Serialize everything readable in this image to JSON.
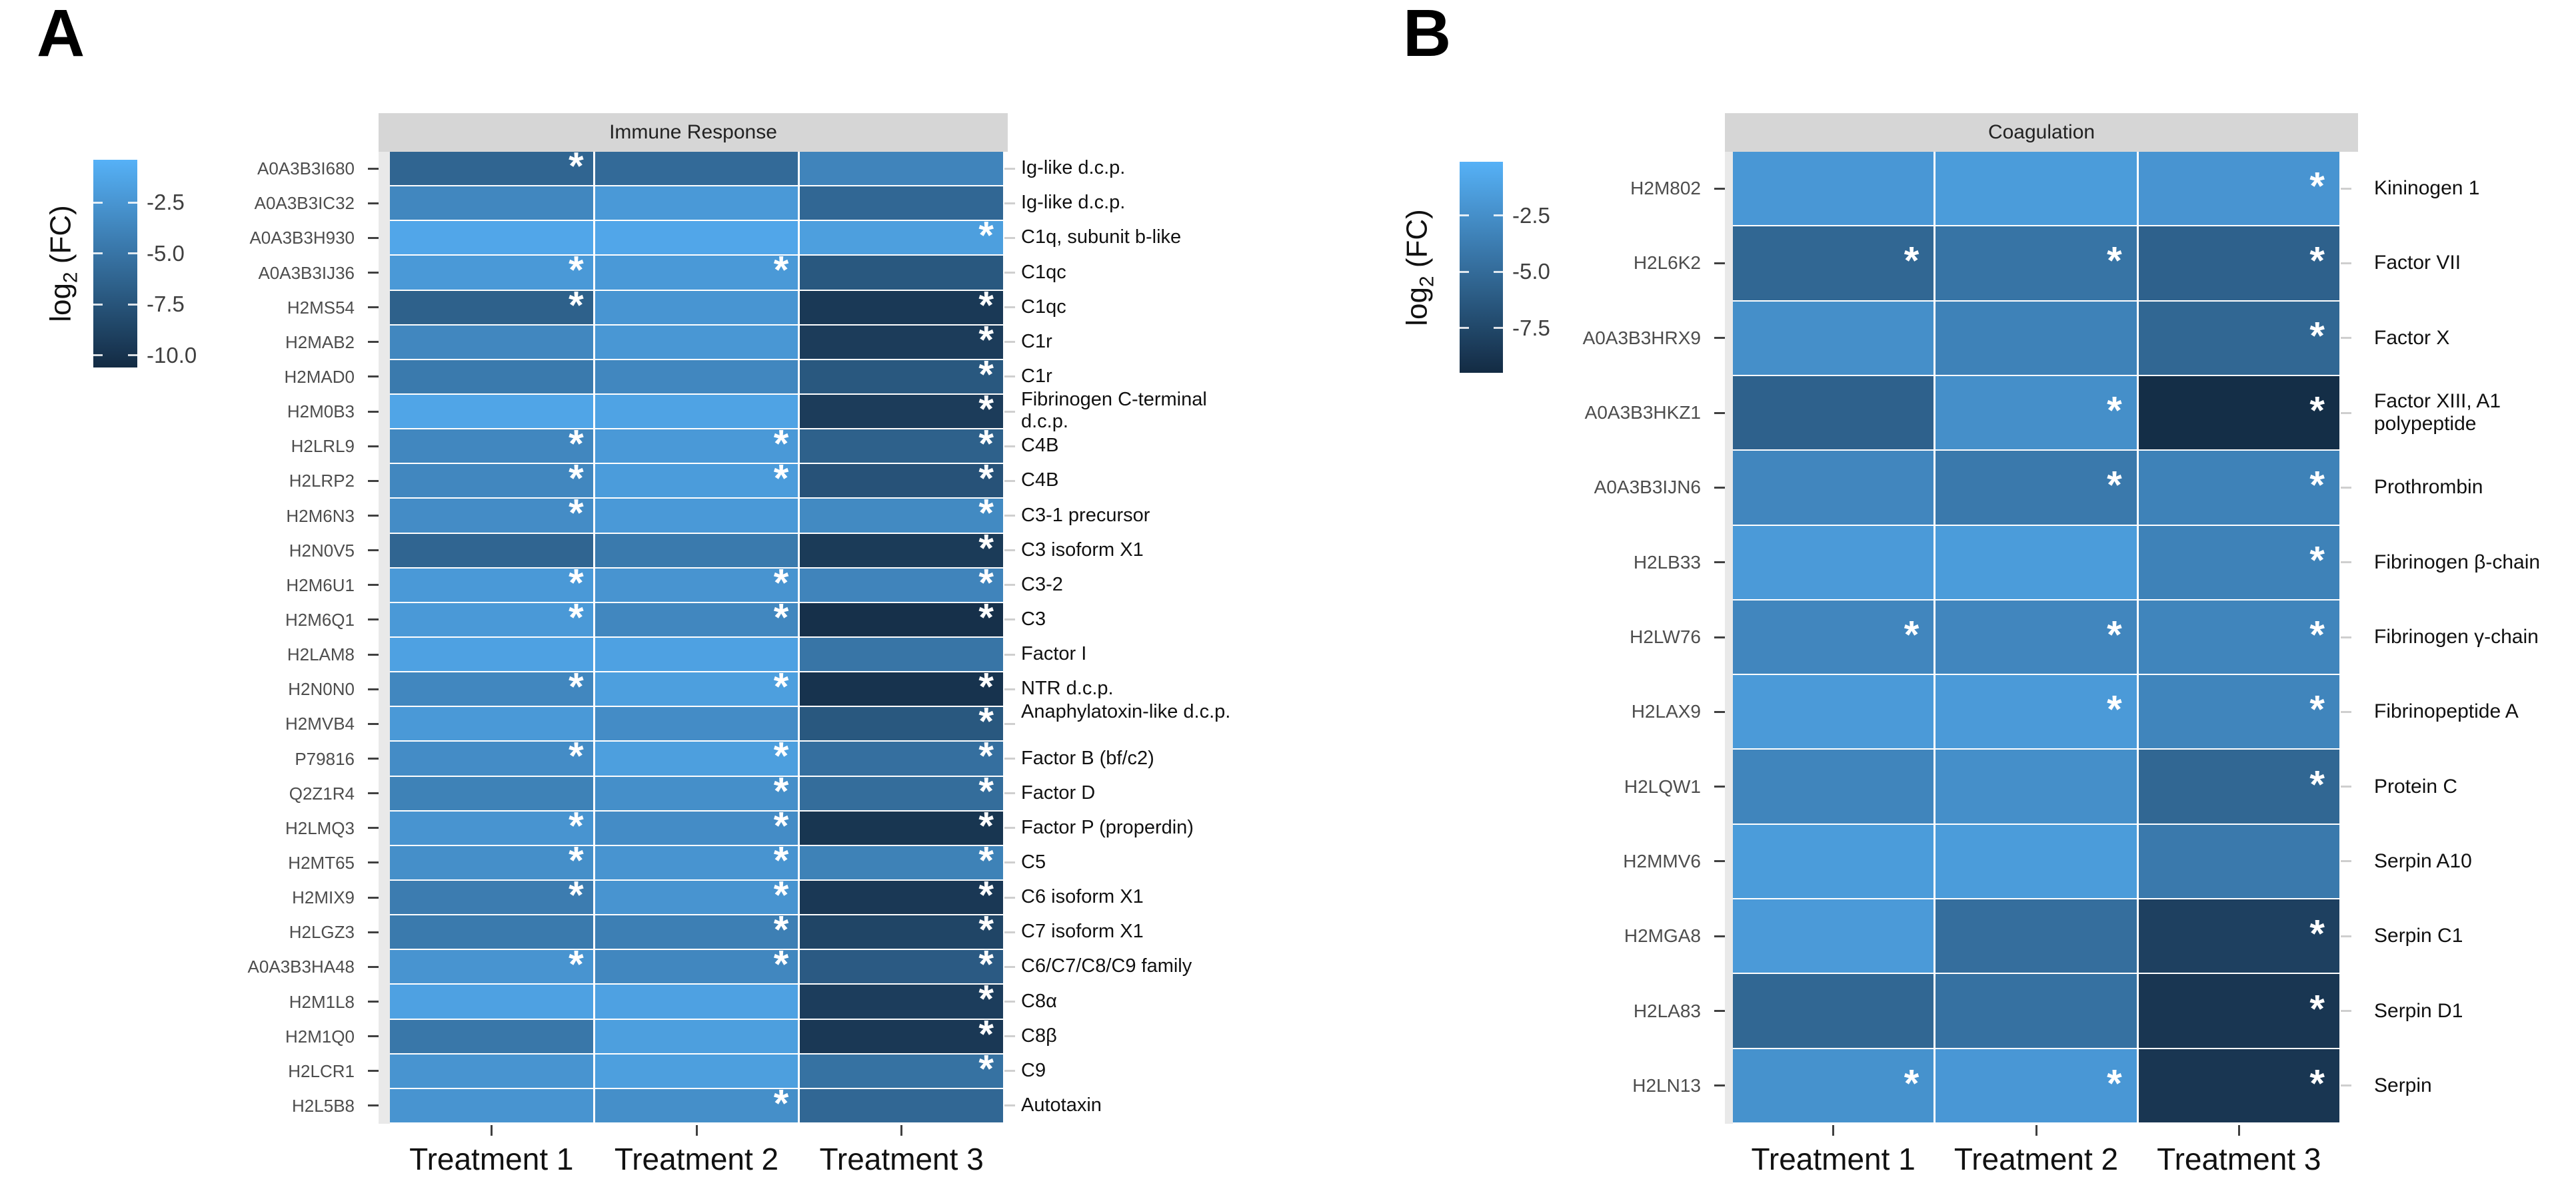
{
  "figure_background": "#ffffff",
  "chart_data": [
    {
      "type": "heatmap",
      "panel_label": "A",
      "facet_title": "Immune Response",
      "legend_title_parts": [
        "log",
        "2",
        " (FC)"
      ],
      "legend_ticks": [
        "-2.5",
        "-5.0",
        "-7.5",
        "-10.0"
      ],
      "color_high": "#56B1F7",
      "color_low": "#132B43",
      "value_domain_abs": [
        0.4,
        10.6
      ],
      "grid_on": false,
      "legend_position": "left",
      "columns": [
        "Treatment 1",
        "Treatment 2",
        "Treatment 3"
      ],
      "rows": [
        {
          "id": "A0A3B3I680",
          "protein": "Ig-like d.c.p.",
          "values": [
            -6.2,
            -5.8,
            -3.8
          ],
          "sig": [
            true,
            false,
            false
          ]
        },
        {
          "id": "A0A3B3IC32",
          "protein": "Ig-like d.c.p.",
          "values": [
            -3.6,
            -2.2,
            -6.0
          ],
          "sig": [
            false,
            false,
            false
          ]
        },
        {
          "id": "A0A3B3H930",
          "protein": "C1q, subunit b-like",
          "values": [
            -1.2,
            -1.2,
            -1.8
          ],
          "sig": [
            false,
            false,
            true
          ]
        },
        {
          "id": "A0A3B3IJ36",
          "protein": "C1qc",
          "values": [
            -2.2,
            -2.2,
            -7.2
          ],
          "sig": [
            true,
            true,
            false
          ]
        },
        {
          "id": "H2MS54",
          "protein": "C1qc",
          "values": [
            -6.5,
            -2.5,
            -9.5
          ],
          "sig": [
            true,
            false,
            true
          ]
        },
        {
          "id": "H2MAB2",
          "protein": "C1r",
          "values": [
            -3.6,
            -2.4,
            -9.3
          ],
          "sig": [
            false,
            false,
            true
          ]
        },
        {
          "id": "H2MAD0",
          "protein": "C1r",
          "values": [
            -4.6,
            -3.6,
            -7.2
          ],
          "sig": [
            false,
            false,
            true
          ]
        },
        {
          "id": "H2M0B3",
          "protein": "Fibrinogen C-terminal d.c.p.",
          "values": [
            -1.3,
            -1.5,
            -9.3
          ],
          "sig": [
            false,
            false,
            true
          ]
        },
        {
          "id": "H2LRL9",
          "protein": "C4B",
          "values": [
            -3.6,
            -2.2,
            -6.5
          ],
          "sig": [
            true,
            true,
            true
          ]
        },
        {
          "id": "H2LRP2",
          "protein": "C4B",
          "values": [
            -3.6,
            -2.0,
            -7.6
          ],
          "sig": [
            true,
            true,
            true
          ]
        },
        {
          "id": "H2M6N3",
          "protein": "C3-1 precursor",
          "values": [
            -3.2,
            -2.2,
            -3.4
          ],
          "sig": [
            true,
            false,
            true
          ]
        },
        {
          "id": "H2N0V5",
          "protein": "C3 isoform X1",
          "values": [
            -6.2,
            -4.6,
            -9.4
          ],
          "sig": [
            false,
            false,
            true
          ]
        },
        {
          "id": "H2M6U1",
          "protein": "C3-2",
          "values": [
            -2.2,
            -2.6,
            -3.8
          ],
          "sig": [
            true,
            true,
            true
          ]
        },
        {
          "id": "H2M6Q1",
          "protein": "C3",
          "values": [
            -2.2,
            -3.6,
            -10.2
          ],
          "sig": [
            true,
            true,
            true
          ]
        },
        {
          "id": "H2LAM8",
          "protein": "Factor I",
          "values": [
            -1.6,
            -1.6,
            -5.0
          ],
          "sig": [
            false,
            false,
            false
          ]
        },
        {
          "id": "H2N0N0",
          "protein": "NTR d.c.p.",
          "values": [
            -3.6,
            -1.8,
            -10.0
          ],
          "sig": [
            true,
            true,
            true
          ]
        },
        {
          "id": "H2MVB4",
          "protein": "Anaphylatoxin-like d.c.p.",
          "values": [
            -2.2,
            -3.2,
            -7.2
          ],
          "sig": [
            false,
            false,
            true
          ]
        },
        {
          "id": "P79816",
          "protein": "Factor B (bf/c2)",
          "values": [
            -3.2,
            -1.8,
            -5.4
          ],
          "sig": [
            true,
            true,
            true
          ]
        },
        {
          "id": "Q2Z1R4",
          "protein": "Factor D",
          "values": [
            -4.0,
            -3.0,
            -5.6
          ],
          "sig": [
            false,
            true,
            true
          ]
        },
        {
          "id": "H2LMQ3",
          "protein": "Factor P (properdin)",
          "values": [
            -2.6,
            -3.2,
            -9.8
          ],
          "sig": [
            true,
            true,
            true
          ]
        },
        {
          "id": "H2MT65",
          "protein": "C5",
          "values": [
            -3.0,
            -2.6,
            -4.0
          ],
          "sig": [
            true,
            true,
            true
          ]
        },
        {
          "id": "H2MIX9",
          "protein": "C6 isoform X1",
          "values": [
            -4.4,
            -2.6,
            -9.6
          ],
          "sig": [
            true,
            true,
            true
          ]
        },
        {
          "id": "H2LGZ3",
          "protein": "C7 isoform X1",
          "values": [
            -4.6,
            -4.2,
            -8.6
          ],
          "sig": [
            false,
            true,
            true
          ]
        },
        {
          "id": "A0A3B3HA48",
          "protein": "C6/C7/C8/C9 family",
          "values": [
            -2.6,
            -3.6,
            -7.0
          ],
          "sig": [
            true,
            true,
            true
          ]
        },
        {
          "id": "H2M1L8",
          "protein": "C8α",
          "values": [
            -1.6,
            -1.6,
            -9.2
          ],
          "sig": [
            false,
            false,
            true
          ]
        },
        {
          "id": "H2M1Q0",
          "protein": "C8β",
          "values": [
            -4.8,
            -1.8,
            -9.6
          ],
          "sig": [
            false,
            false,
            true
          ]
        },
        {
          "id": "H2LCR1",
          "protein": "C9",
          "values": [
            -2.6,
            -1.8,
            -5.2
          ],
          "sig": [
            false,
            false,
            true
          ]
        },
        {
          "id": "H2L5B8",
          "protein": "Autotaxin",
          "values": [
            -2.6,
            -3.0,
            -6.0
          ],
          "sig": [
            false,
            true,
            false
          ]
        }
      ]
    },
    {
      "type": "heatmap",
      "panel_label": "B",
      "facet_title": "Coagulation",
      "legend_title_parts": [
        "log",
        "2",
        " (FC)"
      ],
      "legend_ticks": [
        "-2.5",
        "-5.0",
        "-7.5"
      ],
      "color_high": "#56B1F7",
      "color_low": "#132B43",
      "value_domain_abs": [
        0.1,
        9.5
      ],
      "grid_on": false,
      "legend_position": "left",
      "columns": [
        "Treatment 1",
        "Treatment 2",
        "Treatment 3"
      ],
      "rows": [
        {
          "id": "H2M802",
          "protein": "Kininogen 1",
          "values": [
            -1.9,
            -1.6,
            -2.1
          ],
          "sig": [
            false,
            false,
            true
          ]
        },
        {
          "id": "H2L6K2",
          "protein": "Factor VII",
          "values": [
            -5.3,
            -4.4,
            -5.7
          ],
          "sig": [
            true,
            true,
            true
          ]
        },
        {
          "id": "A0A3B3HRX9",
          "protein": "Factor X",
          "values": [
            -2.5,
            -3.4,
            -5.3
          ],
          "sig": [
            false,
            false,
            true
          ]
        },
        {
          "id": "A0A3B3HKZ1",
          "protein": "Factor XIII, A1 polypeptide",
          "values": [
            -5.7,
            -2.5,
            -9.3
          ],
          "sig": [
            false,
            true,
            true
          ]
        },
        {
          "id": "A0A3B3IJN6",
          "protein": "Prothrombin",
          "values": [
            -3.1,
            -4.0,
            -3.4
          ],
          "sig": [
            false,
            true,
            true
          ]
        },
        {
          "id": "H2LB33",
          "protein": "Fibrinogen β-chain",
          "values": [
            -1.7,
            -1.6,
            -3.4
          ],
          "sig": [
            false,
            false,
            true
          ]
        },
        {
          "id": "H2LW76",
          "protein": "Fibrinogen γ-chain",
          "values": [
            -3.1,
            -3.1,
            -3.2
          ],
          "sig": [
            true,
            true,
            true
          ]
        },
        {
          "id": "H2LAX9",
          "protein": "Fibrinopeptide A",
          "values": [
            -1.7,
            -1.7,
            -3.2
          ],
          "sig": [
            false,
            true,
            true
          ]
        },
        {
          "id": "H2LQW1",
          "protein": "Protein C",
          "values": [
            -3.2,
            -2.5,
            -5.3
          ],
          "sig": [
            false,
            false,
            true
          ]
        },
        {
          "id": "H2MMV6",
          "protein": "Serpin A10",
          "values": [
            -1.6,
            -1.6,
            -4.0
          ],
          "sig": [
            false,
            false,
            false
          ]
        },
        {
          "id": "H2MGA8",
          "protein": "Serpin C1",
          "values": [
            -1.7,
            -4.8,
            -8.0
          ],
          "sig": [
            false,
            false,
            true
          ]
        },
        {
          "id": "H2LA83",
          "protein": "Serpin D1",
          "values": [
            -5.3,
            -4.6,
            -8.7
          ],
          "sig": [
            false,
            false,
            true
          ]
        },
        {
          "id": "H2LN13",
          "protein": "Serpin",
          "values": [
            -2.3,
            -1.9,
            -8.7
          ],
          "sig": [
            true,
            true,
            true
          ]
        }
      ]
    }
  ]
}
